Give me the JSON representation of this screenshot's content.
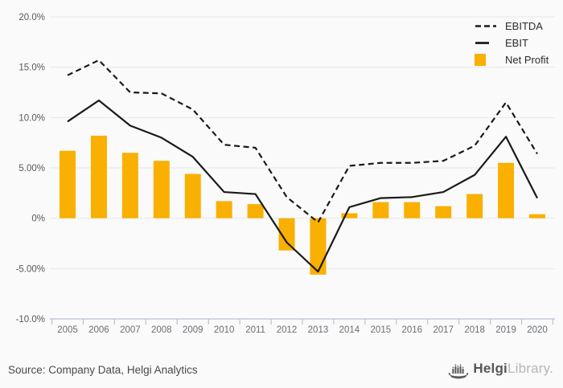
{
  "page": {
    "background": "#fafafa"
  },
  "chart_data": {
    "type": "combo",
    "categories": [
      "2005",
      "2006",
      "2007",
      "2008",
      "2009",
      "2010",
      "2011",
      "2012",
      "2013",
      "2014",
      "2015",
      "2016",
      "2017",
      "2018",
      "2019",
      "2020"
    ],
    "series": [
      {
        "name": "EBITDA",
        "type": "line",
        "style": "dashed",
        "color": "#1a1a1a",
        "values": [
          14.2,
          15.7,
          12.5,
          12.4,
          10.8,
          7.3,
          7.0,
          2.1,
          -0.4,
          5.2,
          5.5,
          5.5,
          5.7,
          7.2,
          11.5,
          6.4
        ]
      },
      {
        "name": "EBIT",
        "type": "line",
        "style": "solid",
        "color": "#1a1a1a",
        "values": [
          9.6,
          11.7,
          9.2,
          8.0,
          6.1,
          2.6,
          2.4,
          -2.4,
          -5.3,
          1.1,
          2.0,
          2.1,
          2.6,
          4.3,
          8.1,
          2.0
        ]
      },
      {
        "name": "Net Profit",
        "type": "bar",
        "color": "#f9b000",
        "values": [
          6.7,
          8.2,
          6.5,
          5.7,
          4.4,
          1.7,
          1.4,
          -3.2,
          -5.6,
          0.5,
          1.6,
          1.6,
          1.2,
          2.4,
          5.5,
          0.4
        ]
      }
    ],
    "y_axis": {
      "min": -10,
      "max": 20,
      "ticks": [
        {
          "value": 20,
          "label": "20.0%"
        },
        {
          "value": 15,
          "label": "15.0%"
        },
        {
          "value": 10,
          "label": "10.0%"
        },
        {
          "value": 5,
          "label": "5.00%"
        },
        {
          "value": 0,
          "label": "0%"
        },
        {
          "value": -5,
          "label": "-5.00%"
        },
        {
          "value": -10,
          "label": "-10.0%"
        }
      ]
    },
    "grid": true,
    "legend_position": "top-right",
    "colors": {
      "gridline": "#e8e8ea",
      "axis": "#b9c1d5",
      "y_label": "#58595b",
      "x_label": "#6a6e74"
    }
  },
  "footer": {
    "source": "Source: Company Data, Helgi Analytics"
  },
  "logo": {
    "icon": "helgi-ship-icon",
    "brand_bold": "Helgi",
    "brand_light": "Library",
    "suffix": "."
  }
}
